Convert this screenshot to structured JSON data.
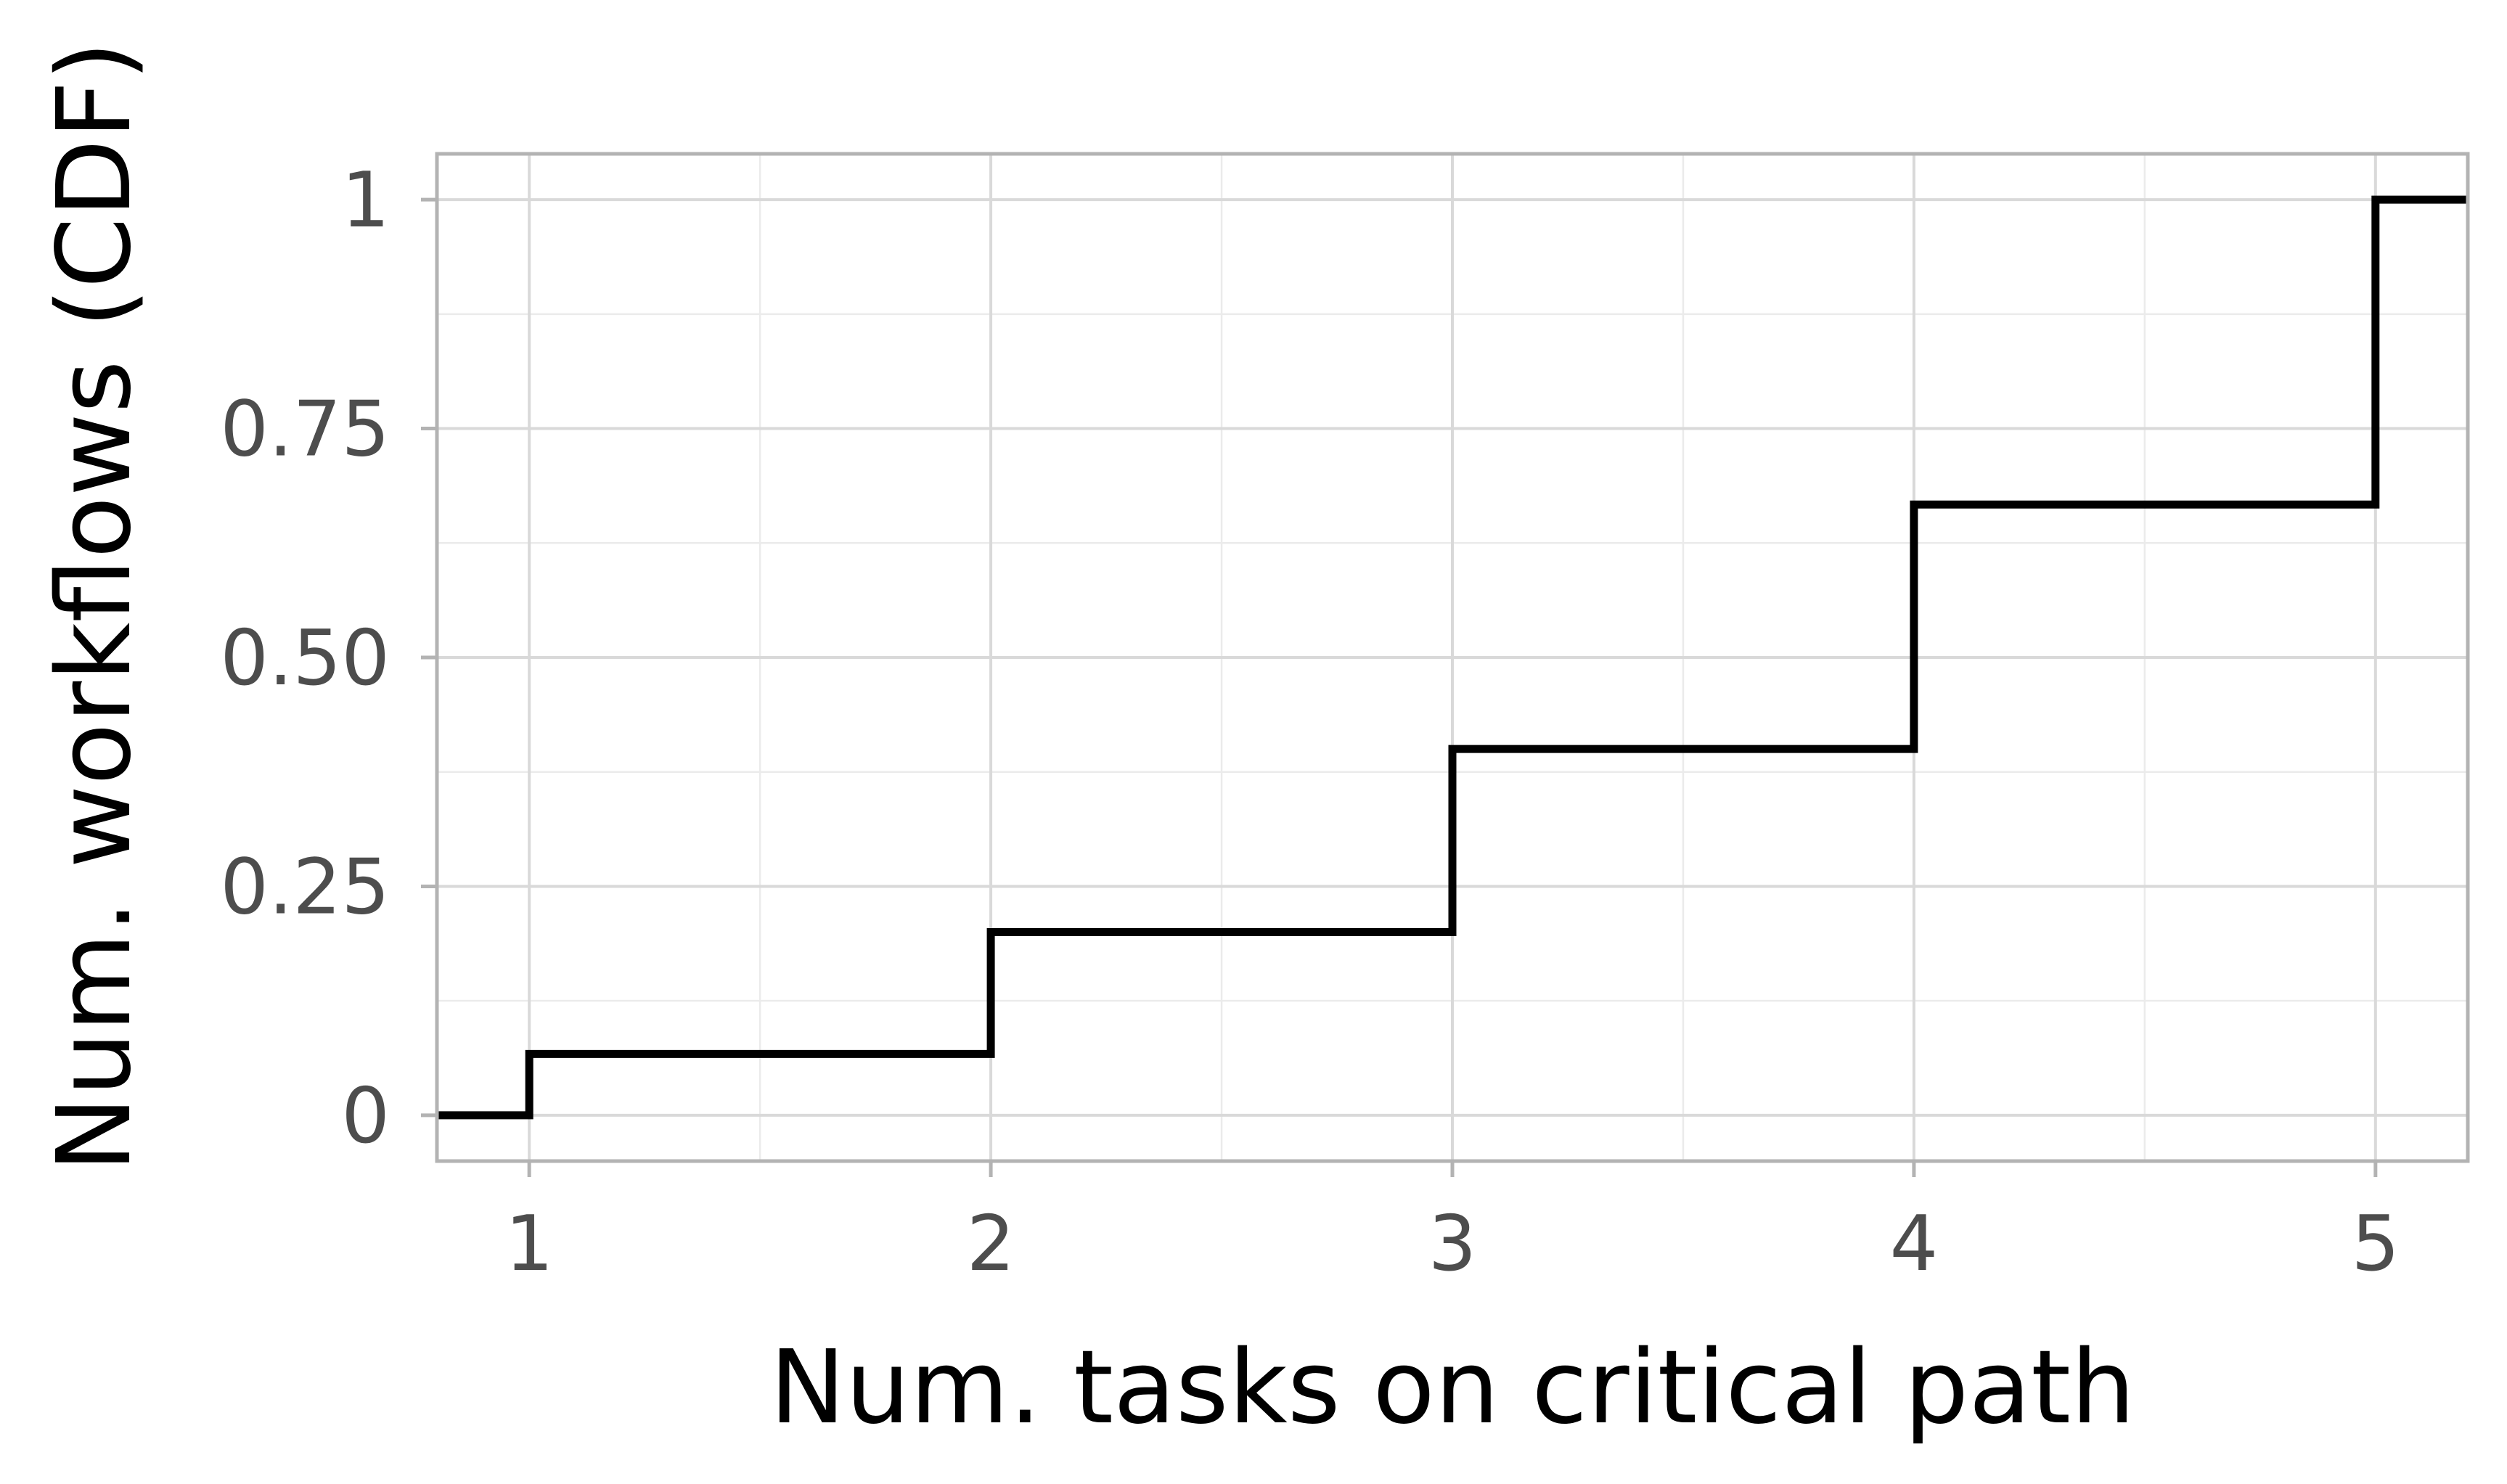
{
  "chart_data": {
    "type": "line",
    "step": true,
    "title": "",
    "xlabel": "Num. tasks on critical path",
    "ylabel": "Num. workflows (CDF)",
    "xlim": [
      0.8,
      5.2
    ],
    "ylim": [
      -0.05,
      1.05
    ],
    "x_ticks": [
      1,
      2,
      3,
      4,
      5
    ],
    "x_tick_labels": [
      "1",
      "2",
      "3",
      "4",
      "5"
    ],
    "y_ticks": [
      0,
      0.25,
      0.5,
      0.75,
      1
    ],
    "y_tick_labels": [
      "0",
      "0.25",
      "0.50",
      "0.75",
      "1"
    ],
    "grid": true,
    "legend": "none",
    "series": [
      {
        "color": "#000000",
        "x": [
          1,
          2,
          3,
          4,
          5
        ],
        "y": [
          0.067,
          0.2,
          0.4,
          0.667,
          1.0
        ]
      }
    ]
  },
  "colors": {
    "panel_border": "#b3b3b3",
    "grid_major": "#d9d9d9",
    "grid_minor": "#ebebeb",
    "tick_text": "#4d4d4d",
    "line": "#000000"
  }
}
